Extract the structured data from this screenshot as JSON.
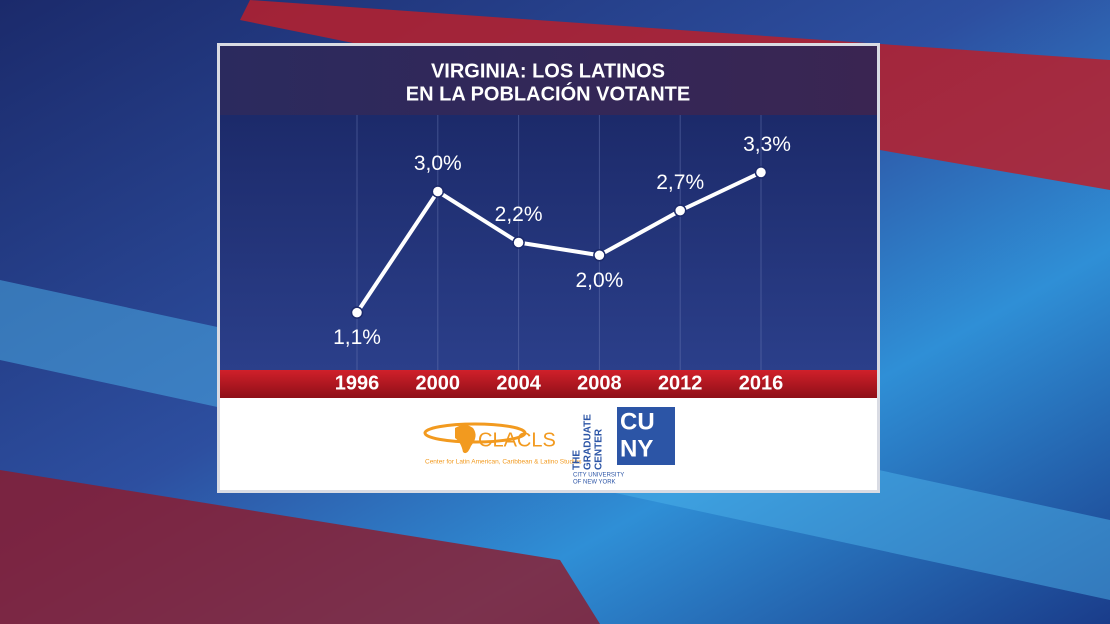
{
  "chart_data": {
    "type": "line",
    "title": [
      "VIRGINIA: LOS LATINOS",
      "EN LA POBLACIÓN VOTANTE"
    ],
    "categories": [
      "1996",
      "2000",
      "2004",
      "2008",
      "2012",
      "2016"
    ],
    "values": [
      1.1,
      3.0,
      2.2,
      2.0,
      2.7,
      3.3
    ],
    "value_labels": [
      "1,1%",
      "3,0%",
      "2,2%",
      "2,0%",
      "2,7%",
      "3,3%"
    ],
    "color": "#ffffff",
    "ylim": [
      0.2,
      4.2
    ],
    "grid": true
  },
  "credits": {
    "clacls": "CLACLS",
    "clacls_full": "Center for Latin American, Caribbean & Latino Studies",
    "graduate_center": [
      "THE",
      "GRADUATE",
      "CENTER"
    ],
    "cuny_full": [
      "CITY UNIVERSITY",
      "OF NEW YORK"
    ],
    "cuny": [
      "CU",
      "NY"
    ]
  }
}
